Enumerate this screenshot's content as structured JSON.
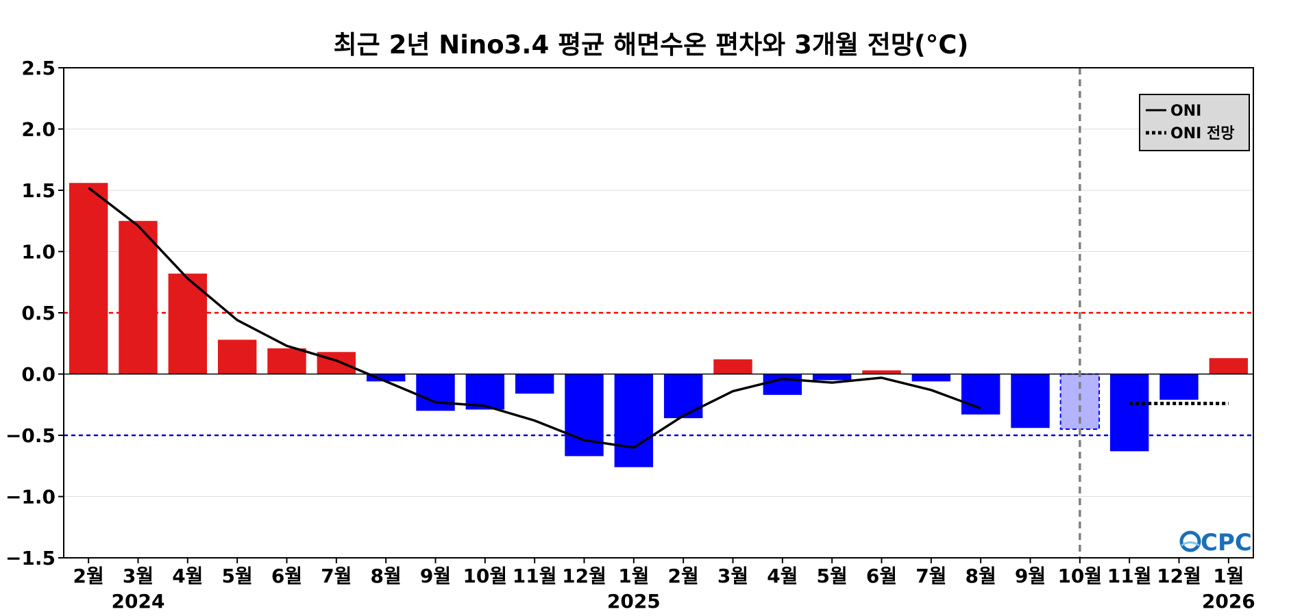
{
  "chart_data": {
    "type": "bar",
    "title": "최근 2년 Nino3.4 평균 해면수온 편차와 3개월 전망(°C)",
    "xlabel": "",
    "ylabel": "",
    "ylim": [
      -1.5,
      2.5
    ],
    "yticks": [
      "2.5",
      "2.0",
      "1.5",
      "1.0",
      "0.5",
      "0.0",
      "−0.5",
      "−1.0",
      "−1.5"
    ],
    "ytick_values": [
      2.5,
      2.0,
      1.5,
      1.0,
      0.5,
      0.0,
      -0.5,
      -1.0,
      -1.5
    ],
    "categories": [
      "2월",
      "3월",
      "4월",
      "5월",
      "6월",
      "7월",
      "8월",
      "9월",
      "10월",
      "11월",
      "12월",
      "1월",
      "2월",
      "3월",
      "4월",
      "5월",
      "6월",
      "7월",
      "8월",
      "9월",
      "10월",
      "11월",
      "12월",
      "1월"
    ],
    "year_labels": [
      {
        "label": "2024",
        "index": 1
      },
      {
        "label": "2025",
        "index": 11
      },
      {
        "label": "2026",
        "index": 23
      }
    ],
    "bars": {
      "name": "",
      "values": [
        1.56,
        1.25,
        0.82,
        0.28,
        0.21,
        0.18,
        -0.06,
        -0.3,
        -0.29,
        -0.16,
        -0.67,
        -0.76,
        -0.36,
        0.12,
        -0.17,
        -0.05,
        0.03,
        -0.06,
        -0.33,
        -0.44,
        -0.45,
        -0.63,
        -0.21,
        0.13
      ],
      "outlook_index": 20
    },
    "series": [
      {
        "name": "ONI",
        "style": "solid",
        "values": [
          1.52,
          1.21,
          0.78,
          0.44,
          0.23,
          0.11,
          -0.06,
          -0.23,
          -0.26,
          -0.38,
          -0.54,
          -0.6,
          -0.34,
          -0.14,
          -0.04,
          -0.07,
          -0.03,
          -0.13,
          -0.28,
          null,
          null,
          null,
          null,
          null
        ]
      },
      {
        "name": "ONI 전망",
        "style": "dotted",
        "values": [
          null,
          null,
          null,
          null,
          null,
          null,
          null,
          null,
          null,
          null,
          null,
          null,
          null,
          null,
          null,
          null,
          null,
          null,
          null,
          null,
          null,
          -0.24,
          -0.24,
          -0.24
        ]
      }
    ],
    "threshold_lines": [
      0.5,
      -0.5
    ],
    "divider_index": 20,
    "legend": {
      "placement": "top-right",
      "entries": [
        "ONI",
        "ONI 전망"
      ]
    },
    "grid": true,
    "logo_text": "CPC",
    "colors": {
      "positive": "#e31a1c",
      "negative": "#0000ff",
      "outlook_bar": "#b3b3ff",
      "warm_threshold": "#ff0000",
      "cold_threshold": "#0000cc",
      "grid": "#dddddd",
      "divider": "#808080",
      "line": "#000000",
      "legend_bg": "#d9d9d9"
    }
  }
}
